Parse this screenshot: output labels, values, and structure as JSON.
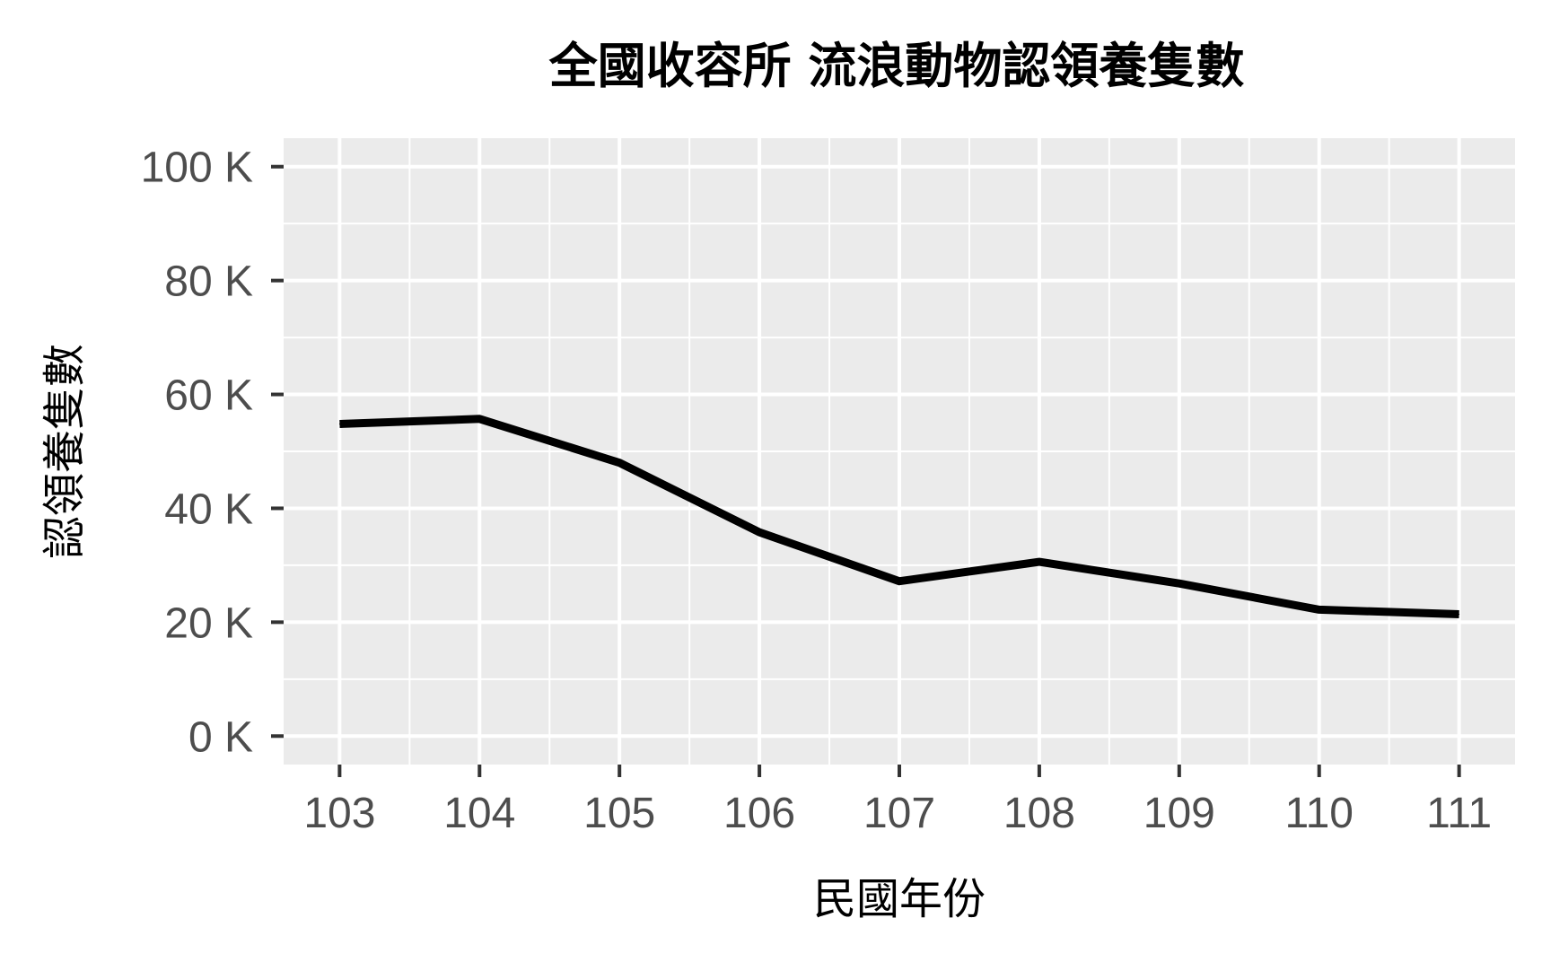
{
  "chart_data": {
    "type": "line",
    "title": "全國收容所 流浪動物認領養隻數",
    "xlabel": "民國年份",
    "ylabel": "認領養隻數",
    "x": [
      103,
      104,
      105,
      106,
      107,
      108,
      109,
      110,
      111
    ],
    "x_tick_labels": [
      "103",
      "104",
      "105",
      "106",
      "107",
      "108",
      "109",
      "110",
      "111"
    ],
    "series": [
      {
        "values": [
          54800,
          55700,
          48000,
          35800,
          27200,
          30600,
          26800,
          22200,
          21400
        ],
        "color": "#000000"
      }
    ],
    "y_ticks": [
      0,
      20000,
      40000,
      60000,
      80000,
      100000
    ],
    "y_tick_labels": [
      "0 K",
      "20 K",
      "40 K",
      "60 K",
      "80 K",
      "100 K"
    ],
    "xlim": [
      102.6,
      111.4
    ],
    "ylim": [
      -5000,
      105000
    ],
    "grid": true,
    "panel_color": "#ebebeb",
    "grid_color": "#ffffff"
  }
}
